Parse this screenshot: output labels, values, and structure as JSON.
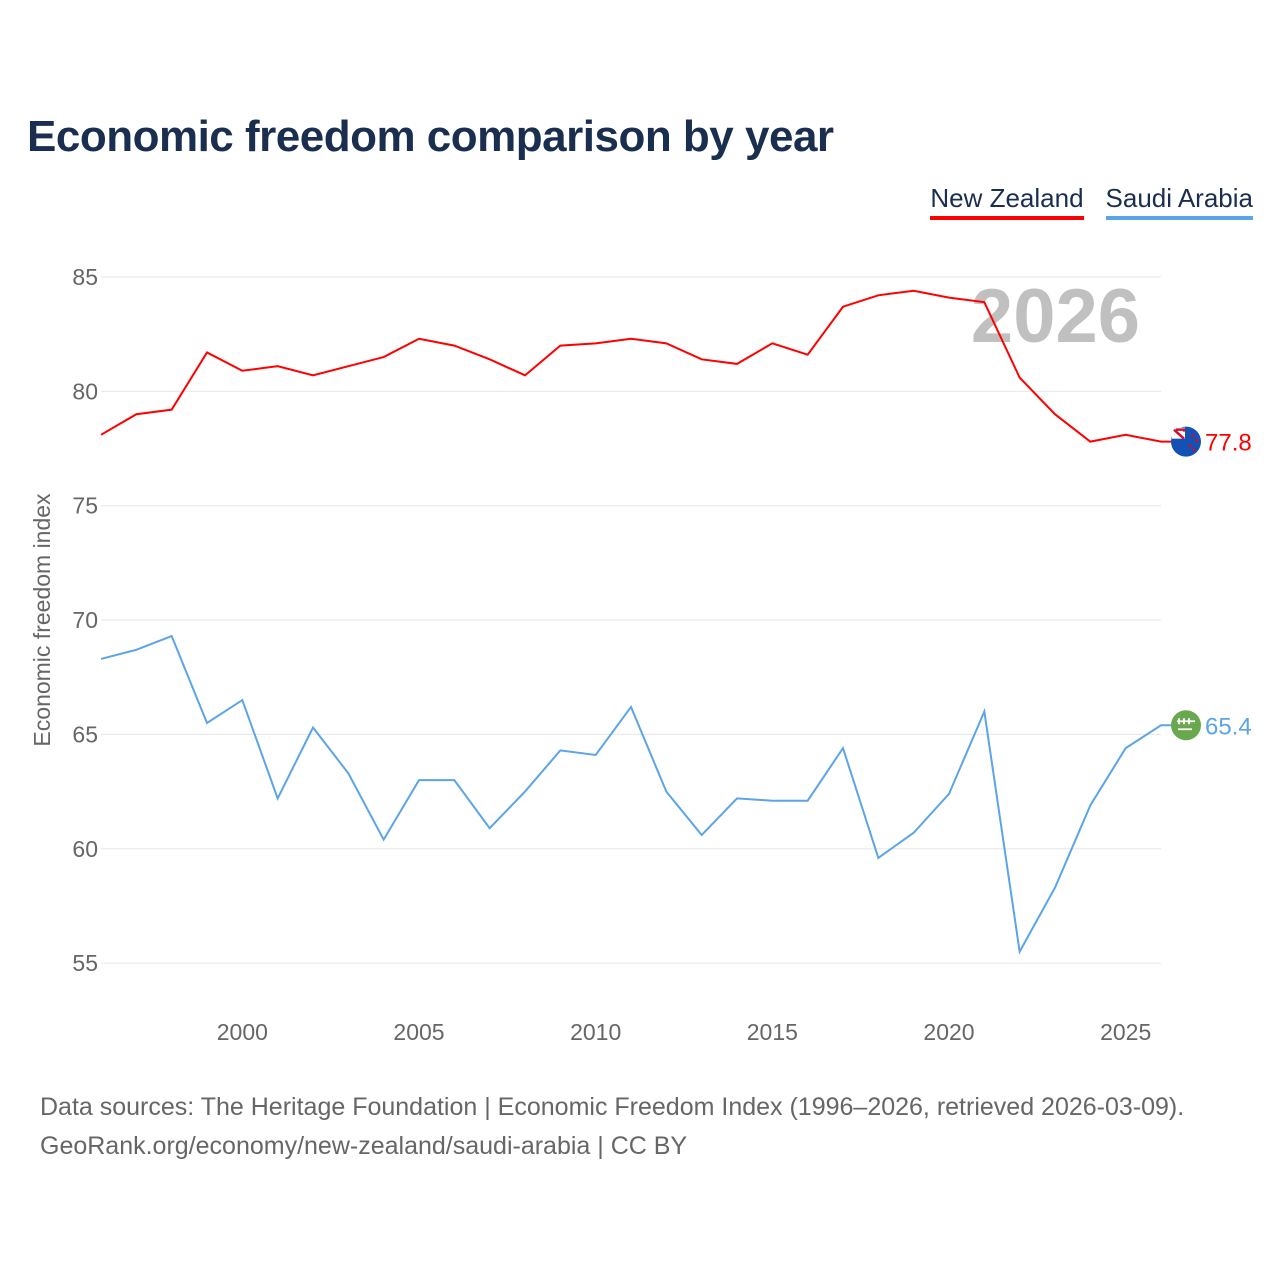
{
  "title": "Economic freedom comparison by year",
  "source_line1": "Data sources: The Heritage Foundation | Economic Freedom Index (1996–2026, retrieved 2026-03-09).",
  "source_line2": "GeoRank.org/economy/new-zealand/saudi-arabia | CC BY",
  "chart_data": {
    "type": "line",
    "title": "Economic freedom comparison by year",
    "xlabel": "",
    "ylabel": "Economic freedom index",
    "ylim": [
      52.5,
      87
    ],
    "xlim": [
      1996,
      2026
    ],
    "yticks": [
      55,
      60,
      65,
      70,
      75,
      80,
      85
    ],
    "xticks": [
      2000,
      2005,
      2010,
      2015,
      2020,
      2025
    ],
    "year_watermark": "2026",
    "legend_position": "top-right",
    "grid": true,
    "x": [
      1996,
      1997,
      1998,
      1999,
      2000,
      2001,
      2002,
      2003,
      2004,
      2005,
      2006,
      2007,
      2008,
      2009,
      2010,
      2011,
      2012,
      2013,
      2014,
      2015,
      2016,
      2017,
      2018,
      2019,
      2020,
      2021,
      2022,
      2023,
      2024,
      2025,
      2026
    ],
    "series": [
      {
        "name": "New Zealand",
        "color": "#ff0000",
        "end_label": "77.8",
        "flag": "new-zealand-flag",
        "values": [
          78.1,
          79.0,
          79.2,
          81.7,
          80.9,
          81.1,
          80.7,
          81.1,
          81.5,
          82.3,
          82.0,
          81.4,
          80.7,
          82.0,
          82.1,
          82.3,
          82.1,
          81.4,
          81.2,
          82.1,
          81.6,
          83.7,
          84.2,
          84.4,
          84.1,
          83.9,
          80.6,
          79.0,
          77.8,
          78.1,
          77.8
        ]
      },
      {
        "name": "Saudi Arabia",
        "color": "#5ba4e8",
        "end_label": "65.4",
        "flag": "saudi-arabia-flag",
        "values": [
          68.3,
          68.7,
          69.3,
          65.5,
          66.5,
          62.2,
          65.3,
          63.3,
          60.4,
          63.0,
          63.0,
          60.9,
          62.5,
          64.3,
          64.1,
          66.2,
          62.5,
          60.6,
          62.2,
          62.1,
          62.1,
          64.4,
          59.6,
          60.7,
          62.4,
          66.0,
          55.5,
          58.3,
          61.9,
          64.4,
          65.4
        ]
      }
    ]
  }
}
